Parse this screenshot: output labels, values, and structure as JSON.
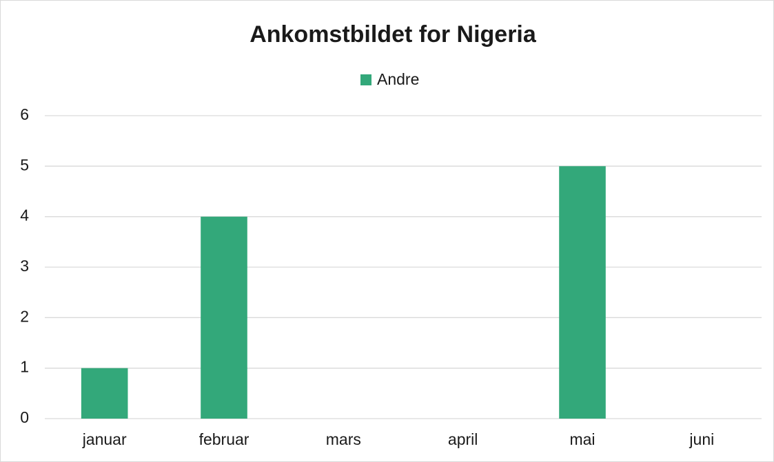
{
  "chart_data": {
    "type": "bar",
    "title": "Ankomstbildet for Nigeria",
    "categories": [
      "januar",
      "februar",
      "mars",
      "april",
      "mai",
      "juni"
    ],
    "series": [
      {
        "name": "Andre",
        "color": "#33a87a",
        "values": [
          1,
          4,
          0,
          0,
          5,
          0
        ]
      }
    ],
    "ylim": [
      0,
      6
    ],
    "yticks": [
      0,
      1,
      2,
      3,
      4,
      5,
      6
    ],
    "grid": true,
    "legend": "top"
  }
}
